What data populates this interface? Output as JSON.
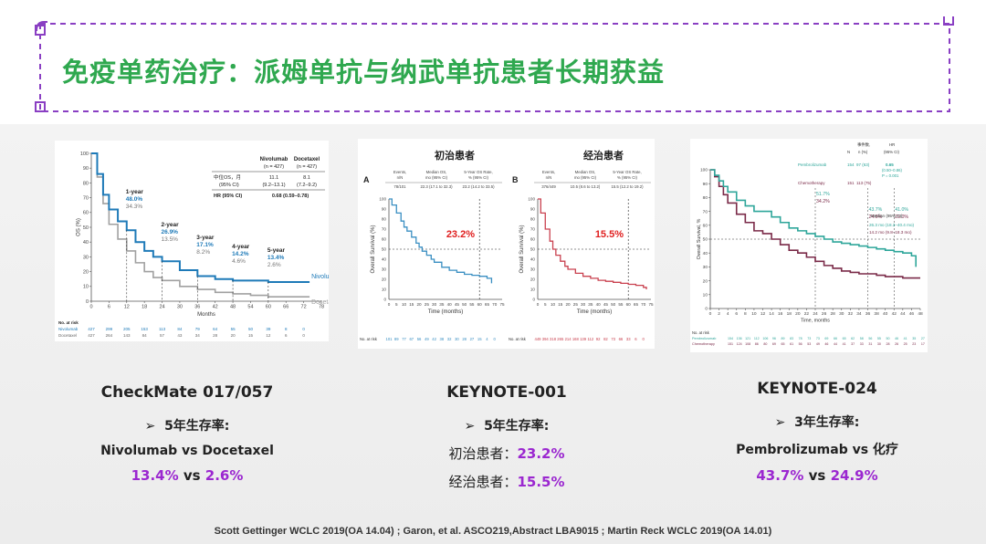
{
  "title": "免疫单药治疗：派姆单抗与纳武单抗患者长期获益",
  "source": "Scott Gettinger WCLC 2019(OA 14.04) ; Garon, et al. ASCO219,Abstract LBA9015 ; Martin Reck WCLC 2019(OA 14.01)",
  "colors": {
    "title_green": "#2fa84f",
    "frame_purple": "#8a3fc3",
    "highlight_purple": "#9b27d0",
    "nivo_blue": "#1e7ab8",
    "doce_gray": "#a0a0a0",
    "k001_blue": "#3a8fc2",
    "k001_red": "#c9414f",
    "pembro_teal": "#2ea69a",
    "chemo_maroon": "#7a2a48"
  },
  "captions": [
    {
      "study": "CheckMate 017/057",
      "bullet": "➢",
      "line1": "5年生存率:",
      "line2": "Nivolumab vs Docetaxel",
      "a": "13.4%",
      "vs": " vs ",
      "b": "2.6%"
    },
    {
      "study": "KEYNOTE-001",
      "bullet": "➢",
      "line1": "5年生存率:",
      "row1_label": "初治患者：",
      "row1_value": "23.2%",
      "row2_label": "经治患者：",
      "row2_value": "15.5%"
    },
    {
      "study": "KEYNOTE-024",
      "bullet": "➢",
      "line1": "3年生存率:",
      "line2": "Pembrolizumab vs 化疗",
      "a": "43.7%",
      "vs": " vs ",
      "b": "24.9%"
    }
  ],
  "chart_data": [
    {
      "type": "line",
      "ylabel": "OS (%)",
      "xlabel": "Months",
      "xlim": [
        0,
        78
      ],
      "ylim": [
        0,
        100
      ],
      "x_ticks": [
        0,
        6,
        12,
        18,
        24,
        30,
        36,
        42,
        48,
        54,
        60,
        66,
        72,
        78
      ],
      "y_ticks": [
        0,
        10,
        20,
        30,
        40,
        50,
        60,
        70,
        80,
        90,
        100
      ],
      "table": {
        "col1": "Nivolumab",
        "col1b": "(n = 427)",
        "col2": "Docetaxel",
        "col2b": "(n = 427)",
        "r1_label": "中位OS，月",
        "r1_v1": "11.1",
        "r1_v2": "8.1",
        "r2_label": "(95% CI)",
        "r2_v1": "(9.2–13.1)",
        "r2_v2": "(7.2–9.2)",
        "r3_label": "HR (95% CI)",
        "r3_v": "0.68 (0.59–0.78)"
      },
      "annotations": [
        {
          "label": "1-year",
          "a": "48.0%",
          "b": "34.3%"
        },
        {
          "label": "2-year",
          "a": "26.9%",
          "b": "13.5%"
        },
        {
          "label": "3-year",
          "a": "17.1%",
          "b": "8.2%"
        },
        {
          "label": "4-year",
          "a": "14.2%",
          "b": "4.6%"
        },
        {
          "label": "5-year",
          "a": "13.4%",
          "b": "2.6%"
        }
      ],
      "series": [
        {
          "name": "Nivolumab",
          "x": [
            0,
            2,
            4,
            6,
            9,
            12,
            15,
            18,
            21,
            24,
            30,
            36,
            42,
            48,
            54,
            60,
            66,
            72,
            74
          ],
          "y": [
            100,
            86,
            72,
            62,
            54,
            48,
            40,
            34,
            30,
            27,
            21,
            17,
            15,
            14,
            14,
            13,
            13,
            13,
            13
          ]
        },
        {
          "name": "Docetaxel",
          "x": [
            0,
            2,
            4,
            6,
            9,
            12,
            15,
            18,
            21,
            24,
            30,
            36,
            42,
            48,
            54,
            60,
            66,
            72,
            74
          ],
          "y": [
            100,
            84,
            66,
            52,
            42,
            34,
            26,
            20,
            16,
            14,
            10,
            8,
            6,
            5,
            4,
            3,
            3,
            3,
            3
          ]
        }
      ],
      "at_risk_title": "No. at risk",
      "at_risk": [
        {
          "name": "Nivolumab",
          "values": [
            "427",
            "299",
            "205",
            "153",
            "113",
            "84",
            "79",
            "64",
            "55",
            "50",
            "39",
            "8",
            "0"
          ]
        },
        {
          "name": "Docetaxel",
          "values": [
            "427",
            "264",
            "143",
            "84",
            "57",
            "43",
            "34",
            "28",
            "20",
            "15",
            "12",
            "6",
            "0"
          ]
        }
      ]
    },
    {
      "type": "line",
      "panel_label": "A",
      "heading": "初治患者",
      "ylabel": "Overall Survival (%)",
      "xlabel": "Time (months)",
      "xlim": [
        0,
        75
      ],
      "ylim": [
        0,
        100
      ],
      "x_ticks": [
        0,
        5,
        10,
        15,
        20,
        25,
        30,
        35,
        40,
        45,
        50,
        55,
        60,
        65,
        70,
        75
      ],
      "y_ticks": [
        0,
        10,
        20,
        30,
        40,
        50,
        60,
        70,
        80,
        90,
        100
      ],
      "header": {
        "c1": "Events,",
        "c1b": "n/N",
        "c2": "Median OS,",
        "c2b": "mo (95% CI)",
        "c3": "5-Year OS Rate,",
        "c3b": "% (95% CI)",
        "v1": "78/101",
        "v2": "22.3 (17.1 to 32.3)",
        "v3": "23.2 (14.2 to 33.5)"
      },
      "rate_label": "23.2%",
      "series": [
        {
          "name": "",
          "x": [
            0,
            2,
            5,
            8,
            10,
            12,
            15,
            18,
            20,
            22,
            25,
            28,
            30,
            35,
            40,
            45,
            50,
            55,
            60,
            65,
            68
          ],
          "y": [
            100,
            94,
            86,
            78,
            72,
            68,
            62,
            56,
            52,
            48,
            44,
            40,
            37,
            32,
            29,
            27,
            25,
            24,
            23,
            21,
            16
          ]
        }
      ],
      "at_risk_title": "No. at risk",
      "at_risk": [
        {
          "name": "",
          "values": [
            "101",
            "89",
            "77",
            "67",
            "56",
            "49",
            "42",
            "38",
            "32",
            "30",
            "28",
            "27",
            "15",
            "4",
            "0"
          ]
        }
      ]
    },
    {
      "type": "line",
      "panel_label": "B",
      "heading": "经治患者",
      "ylabel": "Overall Survival (%)",
      "xlabel": "Time (months)",
      "xlim": [
        0,
        75
      ],
      "ylim": [
        0,
        100
      ],
      "x_ticks": [
        0,
        5,
        10,
        15,
        20,
        25,
        30,
        35,
        40,
        45,
        50,
        55,
        60,
        65,
        70,
        75
      ],
      "y_ticks": [
        0,
        10,
        20,
        30,
        40,
        50,
        60,
        70,
        80,
        90,
        100
      ],
      "header": {
        "c1": "Events,",
        "c1b": "n/N",
        "c2": "Median OS,",
        "c2b": "mo (95% CI)",
        "c3": "5-Year OS Rate,",
        "c3b": "% (95% CI)",
        "v1": "376/449",
        "v2": "10.5 (8.6 to 13.2)",
        "v3": "15.5 (12.2 to 19.2)"
      },
      "rate_label": "15.5%",
      "series": [
        {
          "name": "",
          "x": [
            0,
            2,
            5,
            8,
            10,
            12,
            15,
            18,
            20,
            25,
            30,
            35,
            40,
            45,
            50,
            55,
            60,
            65,
            70,
            72
          ],
          "y": [
            100,
            86,
            70,
            58,
            50,
            44,
            38,
            33,
            30,
            26,
            23,
            21,
            19,
            18,
            17,
            16,
            15,
            14,
            12,
            10
          ]
        }
      ],
      "at_risk_title": "No. at risk",
      "at_risk": [
        {
          "name": "",
          "values": [
            "449",
            "394",
            "318",
            "265",
            "214",
            "168",
            "139",
            "112",
            "92",
            "82",
            "73",
            "66",
            "33",
            "6",
            "0"
          ]
        }
      ]
    },
    {
      "type": "line",
      "ylabel": "Overall Survival, %",
      "xlabel": "Time, months",
      "xlim": [
        0,
        48
      ],
      "ylim": [
        0,
        100
      ],
      "x_ticks": [
        0,
        2,
        4,
        6,
        8,
        10,
        12,
        14,
        16,
        18,
        20,
        22,
        24,
        26,
        28,
        30,
        32,
        34,
        36,
        38,
        40,
        42,
        44,
        46,
        48
      ],
      "y_ticks": [
        0,
        10,
        20,
        30,
        40,
        50,
        60,
        70,
        80,
        90,
        100
      ],
      "legend_header": {
        "events": "事件数,",
        "n": "N",
        "pct": "n (%)",
        "hr": "HR",
        "hrci": "(95% CI)"
      },
      "legend_rows": [
        {
          "name": "Pembrolizumab",
          "n": "154",
          "events": "97 (63)",
          "hr": "0.65",
          "hrci": "(0.50–0.86)",
          "p": "P = 0.001"
        },
        {
          "name": "Chemotherapy",
          "n": "151",
          "events": "113 (75)"
        }
      ],
      "median_title": "Median (95% CI)",
      "median_a": "26.3 mo (18.3–40.4 mo)",
      "median_b": "14.2 mo (9.8–18.3 mo)",
      "rates": [
        {
          "a": "51.7%",
          "b": "34.2%"
        },
        {
          "a": "43.7%",
          "b": "24.9%"
        },
        {
          "a": "41.0%",
          "b": "23.0%"
        }
      ],
      "series": [
        {
          "name": "Pembrolizumab",
          "x": [
            0,
            1,
            2,
            3,
            4,
            6,
            8,
            10,
            12,
            14,
            16,
            18,
            20,
            22,
            24,
            26,
            28,
            30,
            32,
            34,
            36,
            38,
            40,
            42,
            44,
            46,
            47
          ],
          "y": [
            100,
            96,
            92,
            88,
            84,
            78,
            74,
            70,
            70,
            66,
            62,
            58,
            56,
            54,
            52,
            50,
            48,
            47,
            46,
            45,
            44,
            43,
            42,
            41,
            40,
            38,
            30
          ]
        },
        {
          "name": "Chemotherapy",
          "x": [
            0,
            1,
            2,
            3,
            4,
            6,
            8,
            10,
            12,
            14,
            16,
            18,
            20,
            22,
            24,
            26,
            28,
            30,
            32,
            34,
            36,
            38,
            40,
            42,
            44,
            46,
            48
          ],
          "y": [
            100,
            95,
            88,
            82,
            76,
            68,
            62,
            56,
            54,
            50,
            46,
            42,
            40,
            37,
            34,
            31,
            29,
            27,
            26,
            25,
            25,
            24,
            23,
            23,
            22,
            22,
            22
          ]
        }
      ],
      "at_risk_title": "No. at risk",
      "at_risk": [
        {
          "name": "Pembrolizumab",
          "values": [
            "154",
            "136",
            "121",
            "112",
            "106",
            "96",
            "89",
            "83",
            "78",
            "73",
            "73",
            "69",
            "66",
            "65",
            "62",
            "58",
            "56",
            "55",
            "50",
            "46",
            "41",
            "35",
            "27",
            "19",
            "5"
          ]
        },
        {
          "name": "Chemotherapy",
          "values": [
            "151",
            "124",
            "108",
            "86",
            "80",
            "69",
            "65",
            "61",
            "56",
            "53",
            "49",
            "46",
            "44",
            "41",
            "37",
            "33",
            "31",
            "30",
            "28",
            "26",
            "25",
            "23",
            "17",
            "14",
            "5"
          ]
        }
      ]
    }
  ]
}
